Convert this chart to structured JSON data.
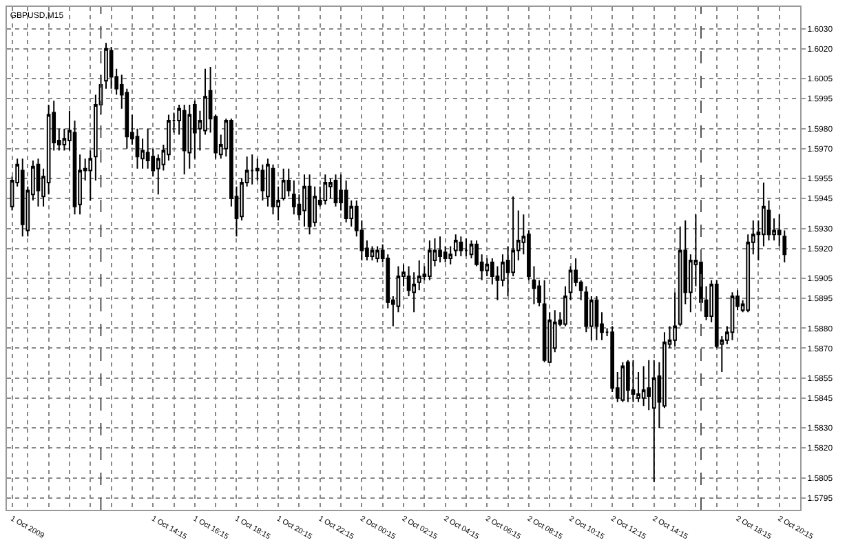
{
  "chart_data": {
    "type": "candlestick",
    "title": "GBPUSD,M15",
    "color": "#000000",
    "grid": true,
    "xlim": [
      "2009-10-01T07:15",
      "2009-10-02T21:15"
    ],
    "ylim": [
      1.5789,
      1.6041
    ],
    "yticks": [
      {
        "value": 1.603,
        "label": "1.6030"
      },
      {
        "value": 1.602,
        "label": "1.6020"
      },
      1.6005,
      1.5995,
      {
        "value": 1.598,
        "label": "1.5980"
      },
      {
        "value": 1.597,
        "label": "1.5970"
      },
      1.5955,
      1.5945,
      {
        "value": 1.593,
        "label": "1.5930"
      },
      {
        "value": 1.592,
        "label": "1.5920"
      },
      1.5905,
      1.5895,
      {
        "value": 1.588,
        "label": "1.5880"
      },
      {
        "value": 1.587,
        "label": "1.5870"
      },
      1.5855,
      1.5845,
      {
        "value": 1.583,
        "label": "1.5830"
      },
      {
        "value": 1.582,
        "label": "1.5820"
      },
      1.5805,
      1.5795
    ],
    "xticks": [
      {
        "value": "2009-10-01T07:30",
        "label": "1 Oct 2009"
      },
      {
        "value": "2009-10-01T08:15",
        "label": null
      },
      {
        "value": "2009-10-01T09:15",
        "label": null
      },
      {
        "value": "2009-10-01T10:15",
        "label": null
      },
      {
        "value": "2009-10-01T11:15",
        "label": null
      },
      {
        "value": "2009-10-01T12:15",
        "label": null
      },
      {
        "value": "2009-10-01T13:15",
        "label": null
      },
      {
        "value": "2009-10-01T14:15",
        "label": "1 Oct 14:15"
      },
      {
        "value": "2009-10-01T15:15",
        "label": null
      },
      {
        "value": "2009-10-01T16:15",
        "label": "1 Oct 16:15"
      },
      {
        "value": "2009-10-01T17:15",
        "label": null
      },
      {
        "value": "2009-10-01T18:15",
        "label": "1 Oct 18:15"
      },
      {
        "value": "2009-10-01T19:15",
        "label": null
      },
      {
        "value": "2009-10-01T20:15",
        "label": "1 Oct 20:15"
      },
      {
        "value": "2009-10-01T21:15",
        "label": null
      },
      {
        "value": "2009-10-01T22:15",
        "label": "1 Oct 22:15"
      },
      {
        "value": "2009-10-01T23:15",
        "label": null
      },
      {
        "value": "2009-10-02T00:15",
        "label": "2 Oct 00:15"
      },
      {
        "value": "2009-10-02T01:15",
        "label": null
      },
      {
        "value": "2009-10-02T02:15",
        "label": "2 Oct 02:15"
      },
      {
        "value": "2009-10-02T03:15",
        "label": null
      },
      {
        "value": "2009-10-02T04:15",
        "label": "2 Oct 04:15"
      },
      {
        "value": "2009-10-02T05:15",
        "label": null
      },
      {
        "value": "2009-10-02T06:15",
        "label": "2 Oct 06:15"
      },
      {
        "value": "2009-10-02T07:15",
        "label": null
      },
      {
        "value": "2009-10-02T08:15",
        "label": "2 Oct 08:15"
      },
      {
        "value": "2009-10-02T09:15",
        "label": null
      },
      {
        "value": "2009-10-02T10:15",
        "label": "2 Oct 10:15"
      },
      {
        "value": "2009-10-02T11:15",
        "label": null
      },
      {
        "value": "2009-10-02T12:15",
        "label": "2 Oct 12:15"
      },
      {
        "value": "2009-10-02T13:15",
        "label": null
      },
      {
        "value": "2009-10-02T14:15",
        "label": "2 Oct 14:15"
      },
      {
        "value": "2009-10-02T15:15",
        "label": null
      },
      {
        "value": "2009-10-02T16:15",
        "label": null
      },
      {
        "value": "2009-10-02T17:15",
        "label": null
      },
      {
        "value": "2009-10-02T18:15",
        "label": "2 Oct 18:15"
      },
      {
        "value": "2009-10-02T19:15",
        "label": null
      },
      {
        "value": "2009-10-02T20:15",
        "label": "2 Oct 20:15"
      }
    ],
    "ref_lines": [
      {
        "axis": "x",
        "value": "2009-10-01T11:45",
        "color": "#555555",
        "line_style": "dashed"
      },
      {
        "axis": "x",
        "value": "2009-10-02T16:30",
        "color": "#555555",
        "line_style": "dashed"
      }
    ],
    "x": [
      "2009-10-01T07:30",
      "2009-10-01T07:45",
      "2009-10-01T08:00",
      "2009-10-01T08:15",
      "2009-10-01T08:30",
      "2009-10-01T08:45",
      "2009-10-01T09:00",
      "2009-10-01T09:15",
      "2009-10-01T09:30",
      "2009-10-01T09:45",
      "2009-10-01T10:00",
      "2009-10-01T10:15",
      "2009-10-01T10:30",
      "2009-10-01T10:45",
      "2009-10-01T11:00",
      "2009-10-01T11:15",
      "2009-10-01T11:30",
      "2009-10-01T11:45",
      "2009-10-01T12:00",
      "2009-10-01T12:15",
      "2009-10-01T12:30",
      "2009-10-01T12:45",
      "2009-10-01T13:00",
      "2009-10-01T13:15",
      "2009-10-01T13:30",
      "2009-10-01T13:45",
      "2009-10-01T14:00",
      "2009-10-01T14:15",
      "2009-10-01T14:30",
      "2009-10-01T14:45",
      "2009-10-01T15:00",
      "2009-10-01T15:15",
      "2009-10-01T15:30",
      "2009-10-01T15:45",
      "2009-10-01T16:00",
      "2009-10-01T16:15",
      "2009-10-01T16:30",
      "2009-10-01T16:45",
      "2009-10-01T17:00",
      "2009-10-01T17:15",
      "2009-10-01T17:30",
      "2009-10-01T17:45",
      "2009-10-01T18:00",
      "2009-10-01T18:15",
      "2009-10-01T18:30",
      "2009-10-01T18:45",
      "2009-10-01T19:00",
      "2009-10-01T19:15",
      "2009-10-01T19:30",
      "2009-10-01T19:45",
      "2009-10-01T20:00",
      "2009-10-01T20:15",
      "2009-10-01T20:30",
      "2009-10-01T20:45",
      "2009-10-01T21:00",
      "2009-10-01T21:15",
      "2009-10-01T21:30",
      "2009-10-01T21:45",
      "2009-10-01T22:00",
      "2009-10-01T22:15",
      "2009-10-01T22:30",
      "2009-10-01T22:45",
      "2009-10-01T23:00",
      "2009-10-01T23:15",
      "2009-10-01T23:30",
      "2009-10-01T23:45",
      "2009-10-02T00:00",
      "2009-10-02T00:15",
      "2009-10-02T00:30",
      "2009-10-02T00:45",
      "2009-10-02T01:00",
      "2009-10-02T01:15",
      "2009-10-02T01:30",
      "2009-10-02T01:45",
      "2009-10-02T02:00",
      "2009-10-02T02:15",
      "2009-10-02T02:30",
      "2009-10-02T02:45",
      "2009-10-02T03:00",
      "2009-10-02T03:15",
      "2009-10-02T03:30",
      "2009-10-02T03:45",
      "2009-10-02T04:00",
      "2009-10-02T04:15",
      "2009-10-02T04:30",
      "2009-10-02T04:45",
      "2009-10-02T05:00",
      "2009-10-02T05:15",
      "2009-10-02T05:30",
      "2009-10-02T05:45",
      "2009-10-02T06:00",
      "2009-10-02T06:15",
      "2009-10-02T06:30",
      "2009-10-02T06:45",
      "2009-10-02T07:00",
      "2009-10-02T07:15",
      "2009-10-02T07:30",
      "2009-10-02T07:45",
      "2009-10-02T08:00",
      "2009-10-02T08:15",
      "2009-10-02T08:30",
      "2009-10-02T08:45",
      "2009-10-02T09:00",
      "2009-10-02T09:15",
      "2009-10-02T09:30",
      "2009-10-02T09:45",
      "2009-10-02T10:00",
      "2009-10-02T10:15",
      "2009-10-02T10:30",
      "2009-10-02T10:45",
      "2009-10-02T11:00",
      "2009-10-02T11:15",
      "2009-10-02T11:30",
      "2009-10-02T11:45",
      "2009-10-02T12:00",
      "2009-10-02T12:15",
      "2009-10-02T12:30",
      "2009-10-02T12:45",
      "2009-10-02T13:00",
      "2009-10-02T13:15",
      "2009-10-02T13:30",
      "2009-10-02T13:45",
      "2009-10-02T14:00",
      "2009-10-02T14:15",
      "2009-10-02T14:30",
      "2009-10-02T14:45",
      "2009-10-02T15:00",
      "2009-10-02T15:15",
      "2009-10-02T15:30",
      "2009-10-02T15:45",
      "2009-10-02T16:00",
      "2009-10-02T16:15",
      "2009-10-02T16:30",
      "2009-10-02T16:45",
      "2009-10-02T17:00",
      "2009-10-02T17:15",
      "2009-10-02T17:30",
      "2009-10-02T17:45",
      "2009-10-02T18:00",
      "2009-10-02T18:15",
      "2009-10-02T18:30",
      "2009-10-02T18:45",
      "2009-10-02T19:00",
      "2009-10-02T19:15",
      "2009-10-02T19:30",
      "2009-10-02T19:45",
      "2009-10-02T20:00",
      "2009-10-02T20:15",
      "2009-10-02T20:30"
    ],
    "ohlc": [
      [
        1.5941,
        1.5956,
        1.5939,
        1.5954
      ],
      [
        1.5953,
        1.5965,
        1.5951,
        1.5962
      ],
      [
        1.5959,
        1.5965,
        1.5926,
        1.5932
      ],
      [
        1.5929,
        1.5951,
        1.5926,
        1.5949
      ],
      [
        1.5947,
        1.5964,
        1.5944,
        1.5961
      ],
      [
        1.5962,
        1.5965,
        1.5941,
        1.5949
      ],
      [
        1.5946,
        1.596,
        1.5941,
        1.5956
      ],
      [
        1.5953,
        1.5992,
        1.5947,
        1.5987
      ],
      [
        1.5988,
        1.5994,
        1.5969,
        1.5973
      ],
      [
        1.5974,
        1.598,
        1.5969,
        1.5972
      ],
      [
        1.5972,
        1.598,
        1.5969,
        1.5975
      ],
      [
        1.5974,
        1.5989,
        1.5969,
        1.5979
      ],
      [
        1.5978,
        1.5984,
        1.5937,
        1.5941
      ],
      [
        1.5942,
        1.5967,
        1.5937,
        1.5959
      ],
      [
        1.596,
        1.5965,
        1.5954,
        1.5959
      ],
      [
        1.5959,
        1.5969,
        1.5944,
        1.5965
      ],
      [
        1.5966,
        1.5997,
        1.5954,
        1.5992
      ],
      [
        1.5992,
        1.6007,
        1.5987,
        1.6002
      ],
      [
        1.6004,
        1.6023,
        1.6,
        1.602
      ],
      [
        1.6019,
        1.6021,
        1.6,
        1.6006
      ],
      [
        1.6006,
        1.601,
        1.5997,
        1.6
      ],
      [
        1.6002,
        1.6007,
        1.599,
        1.5997
      ],
      [
        1.5998,
        1.6,
        1.597,
        1.5976
      ],
      [
        1.5978,
        1.5987,
        1.5972,
        1.5975
      ],
      [
        1.5976,
        1.598,
        1.596,
        1.5966
      ],
      [
        1.5965,
        1.5975,
        1.596,
        1.5969
      ],
      [
        1.5968,
        1.598,
        1.596,
        1.5964
      ],
      [
        1.5966,
        1.597,
        1.5956,
        1.5959
      ],
      [
        1.596,
        1.5967,
        1.5947,
        1.5965
      ],
      [
        1.5962,
        1.5972,
        1.5959,
        1.5969
      ],
      [
        1.5967,
        1.5987,
        1.5964,
        1.5984
      ],
      [
        1.5984,
        1.5988,
        1.5978,
        1.5984
      ],
      [
        1.5984,
        1.5992,
        1.5977,
        1.599
      ],
      [
        1.5989,
        1.5992,
        1.5957,
        1.5969
      ],
      [
        1.5968,
        1.5992,
        1.596,
        1.5987
      ],
      [
        1.5992,
        1.5994,
        1.5965,
        1.5978
      ],
      [
        1.598,
        1.5989,
        1.5969,
        1.5984
      ],
      [
        1.5979,
        1.601,
        1.5977,
        1.5996
      ],
      [
        1.5999,
        1.6011,
        1.5978,
        1.5985
      ],
      [
        1.5986,
        1.5987,
        1.5965,
        1.5968
      ],
      [
        1.5967,
        1.5977,
        1.5965,
        1.5972
      ],
      [
        1.597,
        1.5985,
        1.5966,
        1.5984
      ],
      [
        1.5984,
        1.5985,
        1.5941,
        1.5945
      ],
      [
        1.5946,
        1.5951,
        1.5926,
        1.5935
      ],
      [
        1.5936,
        1.5955,
        1.5934,
        1.5953
      ],
      [
        1.5953,
        1.5966,
        1.5951,
        1.5959
      ],
      [
        1.5959,
        1.5967,
        1.5952,
        1.5959
      ],
      [
        1.5959,
        1.5965,
        1.5954,
        1.596
      ],
      [
        1.5959,
        1.5962,
        1.5944,
        1.5949
      ],
      [
        1.5946,
        1.5965,
        1.5941,
        1.5962
      ],
      [
        1.596,
        1.5962,
        1.5937,
        1.5941
      ],
      [
        1.5941,
        1.5951,
        1.5934,
        1.5944
      ],
      [
        1.5945,
        1.596,
        1.5944,
        1.5954
      ],
      [
        1.5954,
        1.596,
        1.5946,
        1.5949
      ],
      [
        1.5947,
        1.5954,
        1.5937,
        1.5941
      ],
      [
        1.5942,
        1.5947,
        1.5934,
        1.5937
      ],
      [
        1.5939,
        1.5957,
        1.5931,
        1.5951
      ],
      [
        1.5951,
        1.5957,
        1.5927,
        1.5931
      ],
      [
        1.5933,
        1.5951,
        1.5931,
        1.5946
      ],
      [
        1.5944,
        1.5951,
        1.5941,
        1.5942
      ],
      [
        1.5944,
        1.5957,
        1.5942,
        1.5953
      ],
      [
        1.5951,
        1.5955,
        1.5945,
        1.5953
      ],
      [
        1.5954,
        1.5957,
        1.5941,
        1.5943
      ],
      [
        1.5949,
        1.5957,
        1.5939,
        1.5943
      ],
      [
        1.5949,
        1.5954,
        1.5933,
        1.5935
      ],
      [
        1.5935,
        1.5944,
        1.5931,
        1.5941
      ],
      [
        1.5941,
        1.5944,
        1.5926,
        1.5929
      ],
      [
        1.5929,
        1.5934,
        1.5914,
        1.5919
      ],
      [
        1.592,
        1.5924,
        1.5914,
        1.5916
      ],
      [
        1.5916,
        1.5921,
        1.5914,
        1.5919
      ],
      [
        1.5915,
        1.5921,
        1.5913,
        1.5919
      ],
      [
        1.5919,
        1.5922,
        1.5913,
        1.5915
      ],
      [
        1.5915,
        1.5917,
        1.589,
        1.5893
      ],
      [
        1.5894,
        1.5896,
        1.5881,
        1.5892
      ],
      [
        1.5891,
        1.5911,
        1.5888,
        1.5906
      ],
      [
        1.5906,
        1.5912,
        1.5901,
        1.5908
      ],
      [
        1.5906,
        1.5911,
        1.5896,
        1.5899
      ],
      [
        1.5898,
        1.5908,
        1.5888,
        1.5902
      ],
      [
        1.5903,
        1.5914,
        1.5899,
        1.5906
      ],
      [
        1.5907,
        1.5911,
        1.5904,
        1.5906
      ],
      [
        1.5906,
        1.5924,
        1.5904,
        1.5919
      ],
      [
        1.5914,
        1.5925,
        1.5911,
        1.5919
      ],
      [
        1.5919,
        1.5926,
        1.5913,
        1.5916
      ],
      [
        1.5918,
        1.5921,
        1.5913,
        1.5915
      ],
      [
        1.5915,
        1.5921,
        1.5912,
        1.5917
      ],
      [
        1.5919,
        1.5927,
        1.5916,
        1.5924
      ],
      [
        1.5923,
        1.5926,
        1.5916,
        1.5919
      ],
      [
        1.5919,
        1.5925,
        1.5916,
        1.5919
      ],
      [
        1.5917,
        1.5924,
        1.5915,
        1.5922
      ],
      [
        1.5922,
        1.5924,
        1.5911,
        1.5912
      ],
      [
        1.5913,
        1.5917,
        1.5904,
        1.5909
      ],
      [
        1.5909,
        1.5915,
        1.5906,
        1.5912
      ],
      [
        1.5913,
        1.5915,
        1.5902,
        1.5906
      ],
      [
        1.5906,
        1.5911,
        1.5894,
        1.5904
      ],
      [
        1.5904,
        1.5917,
        1.5901,
        1.5913
      ],
      [
        1.5914,
        1.5921,
        1.5896,
        1.5908
      ],
      [
        1.5908,
        1.5946,
        1.5906,
        1.5919
      ],
      [
        1.5919,
        1.5939,
        1.5914,
        1.5924
      ],
      [
        1.5923,
        1.5937,
        1.5917,
        1.5926
      ],
      [
        1.5927,
        1.5929,
        1.5904,
        1.5906
      ],
      [
        1.5904,
        1.5911,
        1.5892,
        1.59
      ],
      [
        1.5901,
        1.5904,
        1.5891,
        1.5893
      ],
      [
        1.5892,
        1.5904,
        1.5863,
        1.5864
      ],
      [
        1.5863,
        1.5888,
        1.5863,
        1.5884
      ],
      [
        1.587,
        1.5889,
        1.5868,
        1.5883
      ],
      [
        1.5884,
        1.5888,
        1.5881,
        1.5882
      ],
      [
        1.5882,
        1.5901,
        1.5881,
        1.5896
      ],
      [
        1.5898,
        1.5911,
        1.5894,
        1.5909
      ],
      [
        1.5909,
        1.5915,
        1.5901,
        1.5903
      ],
      [
        1.5903,
        1.5904,
        1.5894,
        1.5899
      ],
      [
        1.5898,
        1.5901,
        1.5878,
        1.5881
      ],
      [
        1.5881,
        1.5896,
        1.5874,
        1.5894
      ],
      [
        1.5894,
        1.5896,
        1.5874,
        1.5881
      ],
      [
        1.5882,
        1.5888,
        1.5874,
        1.5878
      ],
      [
        1.5878,
        1.588,
        1.5876,
        1.5878
      ],
      [
        1.5878,
        1.5881,
        1.5848,
        1.585
      ],
      [
        1.585,
        1.5858,
        1.5843,
        1.5845
      ],
      [
        1.5844,
        1.5863,
        1.5843,
        1.5861
      ],
      [
        1.5863,
        1.5864,
        1.5843,
        1.5849
      ],
      [
        1.5849,
        1.5864,
        1.5843,
        1.5847
      ],
      [
        1.5845,
        1.5858,
        1.5843,
        1.5847
      ],
      [
        1.5845,
        1.5861,
        1.5841,
        1.5849
      ],
      [
        1.585,
        1.5864,
        1.5839,
        1.5846
      ],
      [
        1.584,
        1.5864,
        1.5803,
        1.5855
      ],
      [
        1.5856,
        1.5863,
        1.583,
        1.5843
      ],
      [
        1.5841,
        1.5878,
        1.584,
        1.5873
      ],
      [
        1.5872,
        1.5881,
        1.587,
        1.5874
      ],
      [
        1.5874,
        1.5898,
        1.5871,
        1.5881
      ],
      [
        1.5882,
        1.5931,
        1.5881,
        1.5919
      ],
      [
        1.5919,
        1.5934,
        1.5892,
        1.5898
      ],
      [
        1.5898,
        1.5917,
        1.5888,
        1.5914
      ],
      [
        1.5912,
        1.5937,
        1.5901,
        1.5914
      ],
      [
        1.5913,
        1.5917,
        1.589,
        1.5893
      ],
      [
        1.5894,
        1.5901,
        1.5884,
        1.5886
      ],
      [
        1.5886,
        1.5904,
        1.5883,
        1.5902
      ],
      [
        1.5902,
        1.5904,
        1.587,
        1.5871
      ],
      [
        1.5872,
        1.5876,
        1.5858,
        1.5874
      ],
      [
        1.5874,
        1.5881,
        1.5872,
        1.5878
      ],
      [
        1.5878,
        1.5898,
        1.5874,
        1.5896
      ],
      [
        1.5896,
        1.5899,
        1.5889,
        1.5891
      ],
      [
        1.5889,
        1.5894,
        1.5888,
        1.5892
      ],
      [
        1.5889,
        1.5927,
        1.5888,
        1.5923
      ],
      [
        1.5923,
        1.5934,
        1.5917,
        1.5927
      ],
      [
        1.5927,
        1.5934,
        1.5914,
        1.5928
      ],
      [
        1.5927,
        1.5953,
        1.5921,
        1.5941
      ],
      [
        1.5939,
        1.5944,
        1.5924,
        1.5927
      ],
      [
        1.5927,
        1.5935,
        1.5924,
        1.5929
      ],
      [
        1.5929,
        1.5937,
        1.5921,
        1.5927
      ],
      [
        1.5926,
        1.5929,
        1.5913,
        1.5917
      ]
    ]
  }
}
